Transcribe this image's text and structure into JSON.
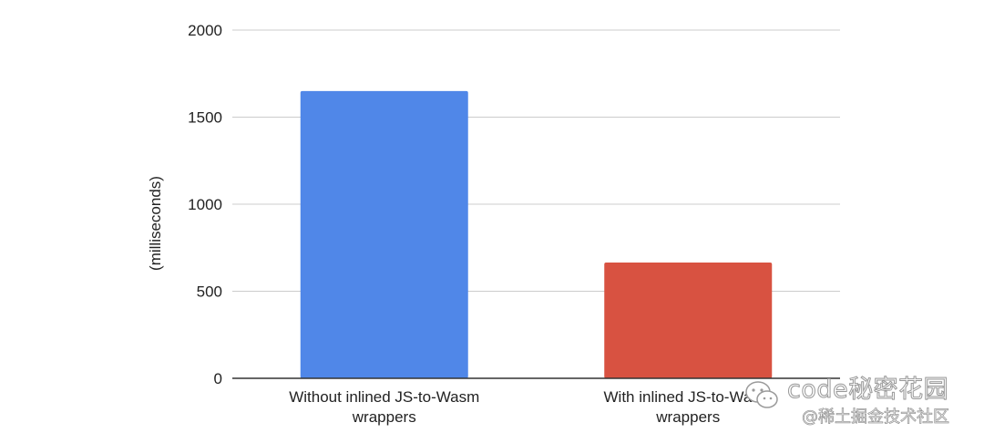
{
  "chart_data": {
    "type": "bar",
    "title": "",
    "xlabel": "",
    "ylabel": "(milliseconds)",
    "categories": [
      [
        "Without inlined JS-to-Wasm",
        "wrappers"
      ],
      [
        "With inlined JS-to-Wasm",
        "wrappers"
      ]
    ],
    "values": [
      1650,
      665
    ],
    "ylim": [
      0,
      2000
    ],
    "yticks": [
      0,
      500,
      1000,
      1500,
      2000
    ],
    "grid": true,
    "colors": [
      "#5087e8",
      "#d85241"
    ]
  },
  "watermark": {
    "main": "code秘密花园",
    "sub": "@稀土掘金技术社区"
  }
}
